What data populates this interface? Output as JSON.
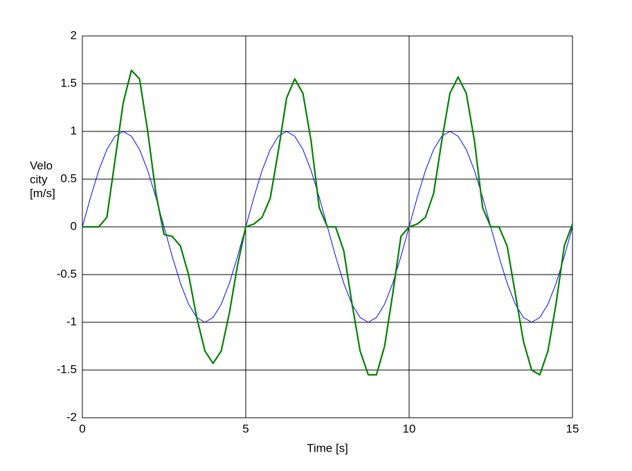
{
  "chart_data": {
    "type": "line",
    "x_label": "Time [s]",
    "y_label": "Velocity [m/s]",
    "x": [
      0,
      0.25,
      0.5,
      0.75,
      1,
      1.25,
      1.5,
      1.75,
      2,
      2.25,
      2.5,
      2.75,
      3,
      3.25,
      3.5,
      3.75,
      4,
      4.25,
      4.5,
      4.75,
      5,
      5.25,
      5.5,
      5.75,
      6,
      6.25,
      6.5,
      6.75,
      7,
      7.25,
      7.5,
      7.75,
      8,
      8.25,
      8.5,
      8.75,
      9,
      9.25,
      9.5,
      9.75,
      10,
      10.25,
      10.5,
      10.75,
      11,
      11.25,
      11.5,
      11.75,
      12,
      12.25,
      12.5,
      12.75,
      13,
      13.25,
      13.5,
      13.75,
      14,
      14.25,
      14.5,
      14.75,
      15
    ],
    "series": [
      {
        "color": "#0000ff",
        "width": 1,
        "values": [
          0,
          0.31,
          0.59,
          0.81,
          0.95,
          1,
          0.95,
          0.81,
          0.59,
          0.31,
          0,
          -0.31,
          -0.59,
          -0.81,
          -0.95,
          -1,
          -0.95,
          -0.81,
          -0.59,
          -0.31,
          0,
          0.31,
          0.59,
          0.81,
          0.95,
          1,
          0.95,
          0.81,
          0.59,
          0.31,
          0,
          -0.31,
          -0.59,
          -0.81,
          -0.95,
          -1,
          -0.95,
          -0.81,
          -0.59,
          -0.31,
          0,
          0.31,
          0.59,
          0.81,
          0.95,
          1,
          0.95,
          0.81,
          0.59,
          0.31,
          0,
          -0.31,
          -0.59,
          -0.81,
          -0.95,
          -1,
          -0.95,
          -0.81,
          -0.59,
          -0.31,
          0
        ]
      },
      {
        "color": "#008000",
        "width": 2.2,
        "values": [
          0,
          0,
          0,
          0.1,
          0.7,
          1.3,
          1.64,
          1.55,
          1.0,
          0.35,
          -0.08,
          -0.1,
          -0.2,
          -0.5,
          -0.95,
          -1.3,
          -1.43,
          -1.3,
          -0.9,
          -0.4,
          0,
          0.03,
          0.1,
          0.3,
          0.8,
          1.35,
          1.55,
          1.4,
          0.9,
          0.2,
          0,
          0,
          -0.25,
          -0.8,
          -1.3,
          -1.55,
          -1.55,
          -1.25,
          -0.7,
          -0.1,
          0,
          0.03,
          0.1,
          0.35,
          0.9,
          1.4,
          1.57,
          1.4,
          0.9,
          0.2,
          0,
          0,
          -0.2,
          -0.7,
          -1.2,
          -1.5,
          -1.55,
          -1.3,
          -0.8,
          -0.2,
          0.03
        ]
      }
    ],
    "xlim": [
      0,
      15
    ],
    "xticks": [
      0,
      5,
      10,
      15
    ],
    "ylim": [
      -2,
      2
    ],
    "yticks": [
      -2,
      -1.5,
      -1,
      -0.5,
      0,
      0.5,
      1,
      1.5,
      2
    ],
    "grid": true
  }
}
